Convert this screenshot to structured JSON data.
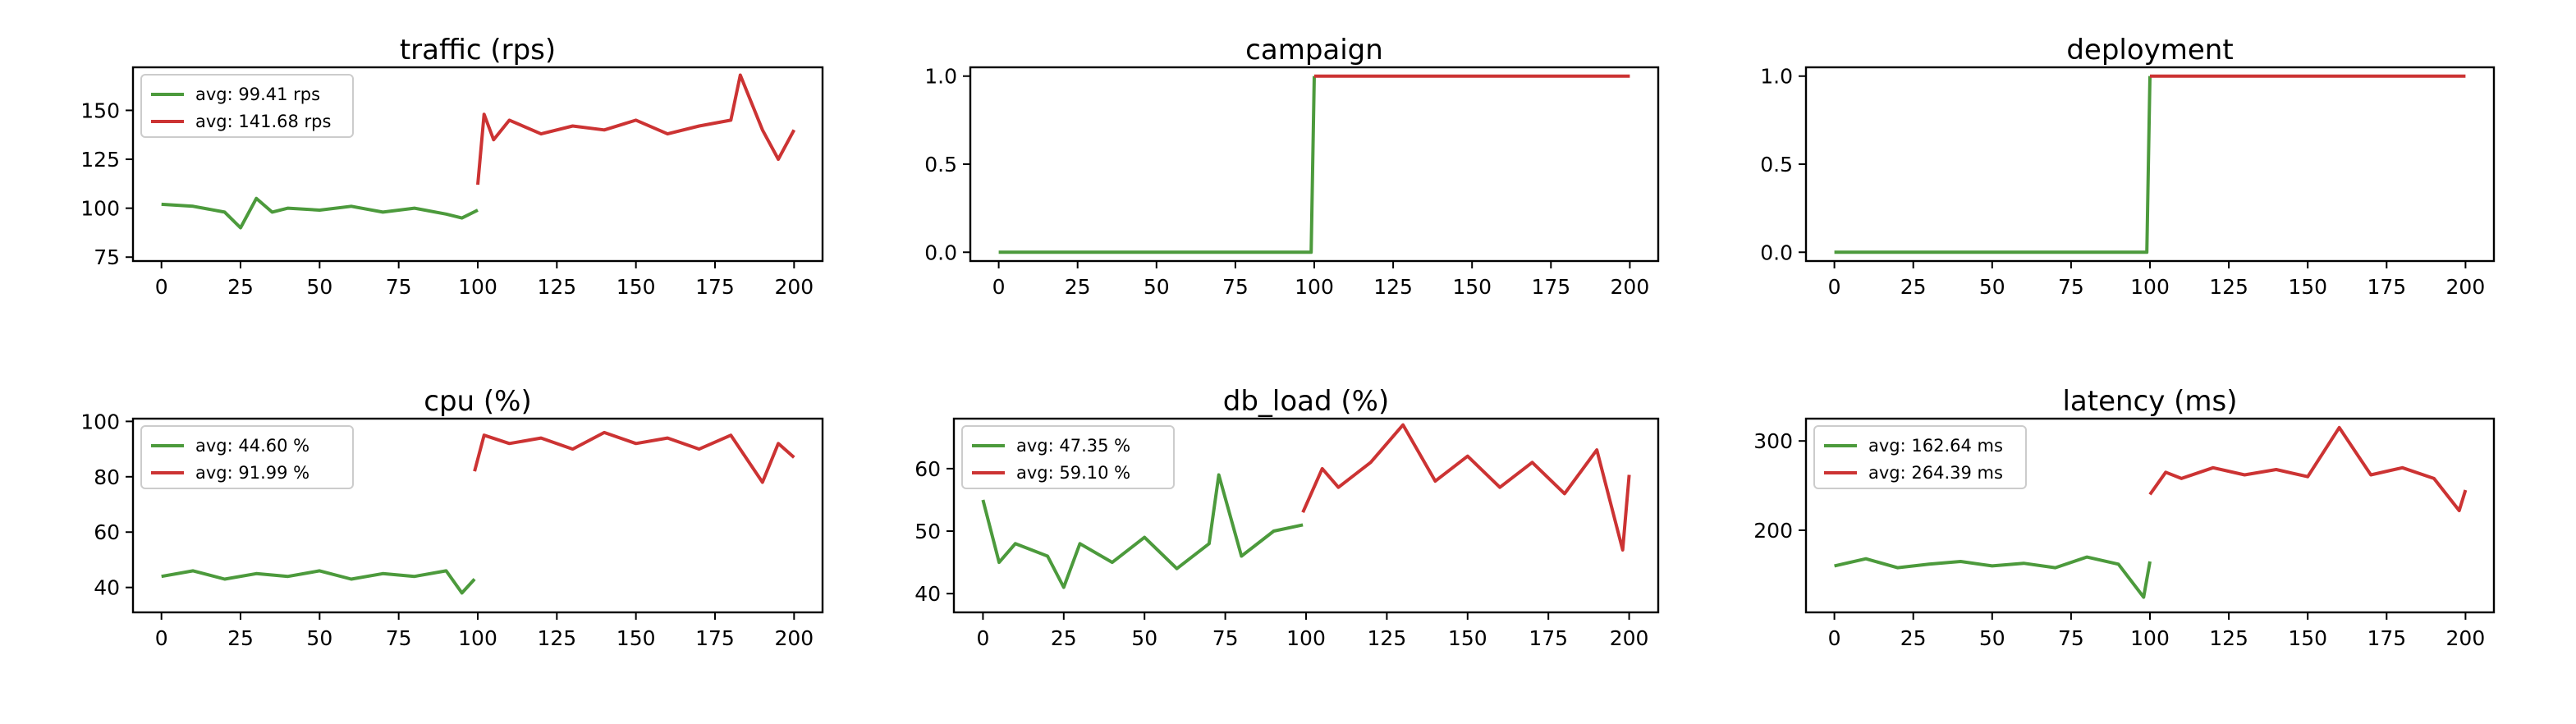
{
  "colors": {
    "before": "#4c9a3c",
    "after": "#cc3333",
    "legend_border": "#cccccc",
    "axes": "#000000"
  },
  "chart_data": [
    {
      "type": "line",
      "title": "traffic (rps)",
      "xlim": [
        -9,
        209
      ],
      "ylim": [
        73,
        172
      ],
      "xticks": [
        0,
        25,
        50,
        75,
        100,
        125,
        150,
        175,
        200
      ],
      "yticks": [
        75,
        100,
        125,
        150
      ],
      "ytick_labels": [
        "75",
        "100",
        "125",
        "150"
      ],
      "legend": {
        "position": "top-left",
        "labels": [
          "avg: 99.41 rps",
          "avg: 141.68 rps"
        ]
      },
      "series": [
        {
          "x": [
            0,
            10,
            20,
            25,
            30,
            35,
            40,
            50,
            60,
            70,
            80,
            90,
            95,
            100
          ],
          "values": [
            102,
            101,
            98,
            90,
            105,
            98,
            100,
            99,
            101,
            98,
            100,
            97,
            95,
            99
          ]
        },
        {
          "x": [
            100,
            102,
            105,
            110,
            120,
            130,
            140,
            150,
            160,
            170,
            180,
            183,
            190,
            195,
            200
          ],
          "values": [
            112,
            148,
            135,
            145,
            138,
            142,
            140,
            145,
            138,
            142,
            145,
            168,
            140,
            125,
            140
          ]
        }
      ]
    },
    {
      "type": "line",
      "title": "campaign",
      "xlim": [
        -9,
        209
      ],
      "ylim": [
        -0.05,
        1.05
      ],
      "xticks": [
        0,
        25,
        50,
        75,
        100,
        125,
        150,
        175,
        200
      ],
      "yticks": [
        0,
        0.5,
        1
      ],
      "ytick_labels": [
        "0.0",
        "0.5",
        "1.0"
      ],
      "series": [
        {
          "x": [
            0,
            99,
            100
          ],
          "values": [
            0,
            0,
            1
          ]
        },
        {
          "x": [
            100,
            200
          ],
          "values": [
            1,
            1
          ]
        }
      ]
    },
    {
      "type": "line",
      "title": "deployment",
      "xlim": [
        -9,
        209
      ],
      "ylim": [
        -0.05,
        1.05
      ],
      "xticks": [
        0,
        25,
        50,
        75,
        100,
        125,
        150,
        175,
        200
      ],
      "yticks": [
        0,
        0.5,
        1
      ],
      "ytick_labels": [
        "0.0",
        "0.5",
        "1.0"
      ],
      "series": [
        {
          "x": [
            0,
            99,
            100
          ],
          "values": [
            0,
            0,
            1
          ]
        },
        {
          "x": [
            100,
            200
          ],
          "values": [
            1,
            1
          ]
        }
      ]
    },
    {
      "type": "line",
      "title": "cpu (%)",
      "xlim": [
        -9,
        209
      ],
      "ylim": [
        31,
        101
      ],
      "xticks": [
        0,
        25,
        50,
        75,
        100,
        125,
        150,
        175,
        200
      ],
      "yticks": [
        40,
        60,
        80,
        100
      ],
      "ytick_labels": [
        "40",
        "60",
        "80",
        "100"
      ],
      "legend": {
        "position": "top-left",
        "labels": [
          "avg: 44.60 %",
          "avg: 91.99 %"
        ]
      },
      "series": [
        {
          "x": [
            0,
            10,
            20,
            30,
            40,
            50,
            60,
            70,
            80,
            90,
            95,
            99
          ],
          "values": [
            44,
            46,
            43,
            45,
            44,
            46,
            43,
            45,
            44,
            46,
            38,
            43
          ]
        },
        {
          "x": [
            99,
            102,
            110,
            120,
            130,
            140,
            150,
            160,
            170,
            180,
            190,
            195,
            200
          ],
          "values": [
            82,
            95,
            92,
            94,
            90,
            96,
            92,
            94,
            90,
            95,
            78,
            92,
            87
          ]
        }
      ]
    },
    {
      "type": "line",
      "title": "db_load (%)",
      "xlim": [
        -9,
        209
      ],
      "ylim": [
        37,
        68
      ],
      "xticks": [
        0,
        25,
        50,
        75,
        100,
        125,
        150,
        175,
        200
      ],
      "yticks": [
        40,
        50,
        60
      ],
      "ytick_labels": [
        "40",
        "50",
        "60"
      ],
      "legend": {
        "position": "top-left",
        "labels": [
          "avg: 47.35 %",
          "avg: 59.10 %"
        ]
      },
      "series": [
        {
          "x": [
            0,
            5,
            10,
            20,
            25,
            30,
            40,
            50,
            60,
            70,
            73,
            80,
            90,
            99
          ],
          "values": [
            55,
            45,
            48,
            46,
            41,
            48,
            45,
            49,
            44,
            48,
            59,
            46,
            50,
            51
          ]
        },
        {
          "x": [
            99,
            105,
            110,
            120,
            130,
            140,
            150,
            160,
            170,
            180,
            190,
            198,
            200
          ],
          "values": [
            53,
            60,
            57,
            61,
            67,
            58,
            62,
            57,
            61,
            56,
            63,
            47,
            59
          ]
        }
      ]
    },
    {
      "type": "line",
      "title": "latency (ms)",
      "xlim": [
        -9,
        209
      ],
      "ylim": [
        108,
        325
      ],
      "xticks": [
        0,
        25,
        50,
        75,
        100,
        125,
        150,
        175,
        200
      ],
      "yticks": [
        200,
        300
      ],
      "ytick_labels": [
        "200",
        "300"
      ],
      "legend": {
        "position": "top-left",
        "labels": [
          "avg: 162.64 ms",
          "avg: 264.39 ms"
        ]
      },
      "series": [
        {
          "x": [
            0,
            10,
            20,
            30,
            40,
            50,
            60,
            70,
            80,
            90,
            98,
            100
          ],
          "values": [
            160,
            168,
            158,
            162,
            165,
            160,
            163,
            158,
            170,
            162,
            125,
            165
          ]
        },
        {
          "x": [
            100,
            105,
            110,
            120,
            130,
            140,
            150,
            160,
            170,
            180,
            190,
            198,
            200
          ],
          "values": [
            240,
            265,
            258,
            270,
            262,
            268,
            260,
            315,
            262,
            270,
            258,
            222,
            245
          ]
        }
      ]
    }
  ]
}
